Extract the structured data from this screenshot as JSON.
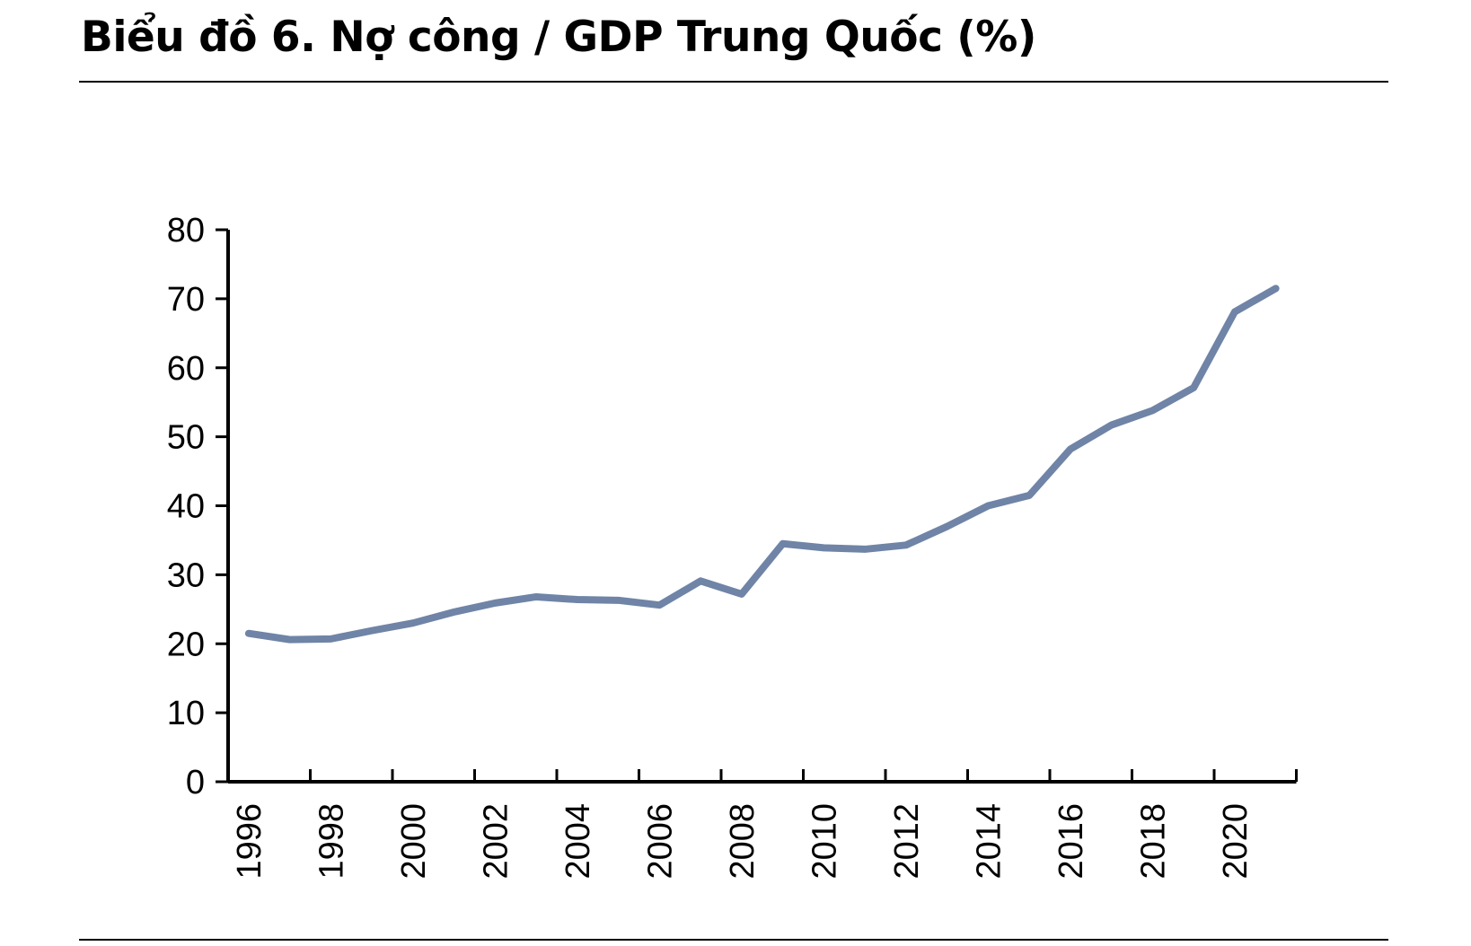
{
  "title": "Biểu đồ 6. Nợ công / GDP Trung Quốc (%)",
  "colors": {
    "line": "#6f84a6",
    "axis": "#000000"
  },
  "chart_data": {
    "type": "line",
    "title": "Biểu đồ 6. Nợ công / GDP Trung Quốc (%)",
    "xlabel": "",
    "ylabel": "",
    "x": [
      1996,
      1997,
      1998,
      1999,
      2000,
      2001,
      2002,
      2003,
      2004,
      2005,
      2006,
      2007,
      2008,
      2009,
      2010,
      2011,
      2012,
      2013,
      2014,
      2015,
      2016,
      2017,
      2018,
      2019,
      2020,
      2021
    ],
    "series": [
      {
        "values": [
          21.5,
          20.6,
          20.7,
          21.9,
          23.0,
          24.6,
          25.9,
          26.8,
          26.4,
          26.3,
          25.6,
          29.1,
          27.2,
          34.5,
          33.9,
          33.7,
          34.3,
          37.0,
          40.0,
          41.5,
          48.2,
          51.7,
          53.8,
          57.1,
          68.1,
          71.5
        ]
      }
    ],
    "ylim": [
      0,
      80
    ],
    "yticks": [
      0,
      10,
      20,
      30,
      40,
      50,
      60,
      70,
      80
    ],
    "xtick_labels": [
      "1996",
      "1998",
      "2000",
      "2002",
      "2004",
      "2006",
      "2008",
      "2010",
      "2012",
      "2014",
      "2016",
      "2018",
      "2020"
    ],
    "grid": false,
    "legend": "none"
  }
}
